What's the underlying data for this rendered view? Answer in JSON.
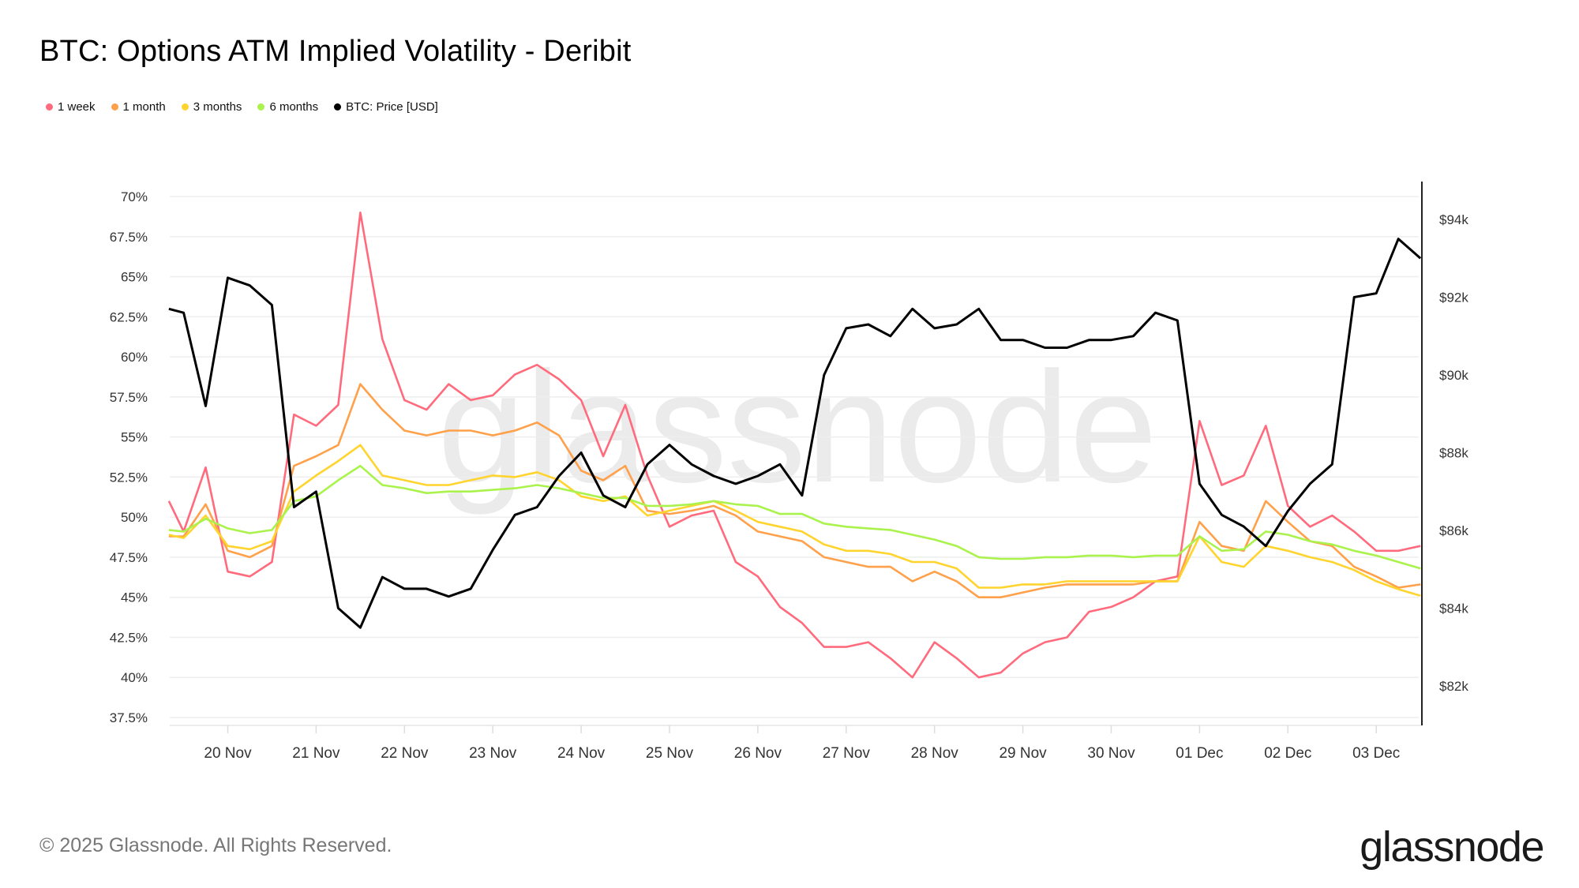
{
  "title": "BTC: Options ATM Implied Volatility - Deribit",
  "footer": {
    "copyright": "© 2025 Glassnode. All Rights Reserved.",
    "logo": "glassnode",
    "watermark": "glassnode"
  },
  "chart_data": {
    "type": "line",
    "title": "BTC: Options ATM Implied Volatility - Deribit",
    "legend_position": "top-left",
    "grid": true,
    "x_ticks": [
      "20 Nov",
      "21 Nov",
      "22 Nov",
      "23 Nov",
      "24 Nov",
      "25 Nov",
      "26 Nov",
      "27 Nov",
      "28 Nov",
      "29 Nov",
      "30 Nov",
      "01 Dec",
      "02 Dec",
      "03 Dec"
    ],
    "y_left": {
      "ticks": [
        "37.5%",
        "40%",
        "42.5%",
        "45%",
        "47.5%",
        "50%",
        "52.5%",
        "55%",
        "57.5%",
        "60%",
        "62.5%",
        "65%",
        "67.5%",
        "70%"
      ],
      "range": [
        37.5,
        70
      ],
      "unit": "%"
    },
    "y_right": {
      "ticks": [
        "$82k",
        "$84k",
        "$86k",
        "$88k",
        "$90k",
        "$92k",
        "$94k"
      ],
      "range": [
        80.9,
        95.0
      ],
      "unit": "USD thousands"
    },
    "x": [
      "19 Nov 08:00",
      "19 Nov 12:00",
      "19 Nov 18:00",
      "20 Nov 00:00",
      "20 Nov 06:00",
      "20 Nov 12:00",
      "20 Nov 18:00",
      "21 Nov 00:00",
      "21 Nov 06:00",
      "21 Nov 12:00",
      "21 Nov 18:00",
      "22 Nov 00:00",
      "22 Nov 06:00",
      "22 Nov 12:00",
      "22 Nov 18:00",
      "23 Nov 00:00",
      "23 Nov 06:00",
      "23 Nov 12:00",
      "23 Nov 18:00",
      "24 Nov 00:00",
      "24 Nov 06:00",
      "24 Nov 12:00",
      "24 Nov 18:00",
      "25 Nov 00:00",
      "25 Nov 06:00",
      "25 Nov 12:00",
      "25 Nov 18:00",
      "26 Nov 00:00",
      "26 Nov 06:00",
      "26 Nov 12:00",
      "26 Nov 18:00",
      "27 Nov 00:00",
      "27 Nov 06:00",
      "27 Nov 12:00",
      "27 Nov 18:00",
      "28 Nov 00:00",
      "28 Nov 06:00",
      "28 Nov 12:00",
      "28 Nov 18:00",
      "29 Nov 00:00",
      "29 Nov 06:00",
      "29 Nov 12:00",
      "29 Nov 18:00",
      "30 Nov 00:00",
      "30 Nov 06:00",
      "30 Nov 12:00",
      "30 Nov 18:00",
      "01 Dec 00:00",
      "01 Dec 06:00",
      "01 Dec 12:00",
      "01 Dec 18:00",
      "02 Dec 00:00",
      "02 Dec 06:00",
      "02 Dec 12:00",
      "02 Dec 18:00",
      "03 Dec 00:00",
      "03 Dec 06:00",
      "03 Dec 12:00"
    ],
    "series": [
      {
        "name": "1 week",
        "axis": "left",
        "color": "#ff6b7d",
        "values": [
          51.0,
          49.1,
          53.1,
          46.6,
          46.3,
          47.2,
          56.4,
          55.7,
          57.0,
          69.0,
          61.1,
          57.3,
          56.7,
          58.3,
          57.3,
          57.6,
          58.9,
          59.5,
          58.6,
          57.3,
          53.8,
          57.0,
          52.6,
          49.4,
          50.1,
          50.4,
          47.2,
          46.3,
          44.4,
          43.4,
          41.9,
          41.9,
          42.2,
          41.2,
          40.0,
          42.2,
          41.2,
          40.0,
          40.3,
          41.5,
          42.2,
          42.5,
          44.1,
          44.4,
          45.0,
          46.0,
          46.3,
          56.0,
          52.0,
          52.6,
          55.7,
          50.7,
          49.4,
          50.1,
          49.1,
          47.9,
          47.9,
          48.2
        ]
      },
      {
        "name": "1 month",
        "axis": "left",
        "color": "#ffa04a",
        "values": [
          48.8,
          48.8,
          50.8,
          47.9,
          47.5,
          48.2,
          53.2,
          53.8,
          54.5,
          58.3,
          56.7,
          55.4,
          55.1,
          55.4,
          55.4,
          55.1,
          55.4,
          55.9,
          55.1,
          52.9,
          52.3,
          53.2,
          50.4,
          50.2,
          50.4,
          50.7,
          50.1,
          49.1,
          48.8,
          48.5,
          47.5,
          47.2,
          46.9,
          46.9,
          46.0,
          46.6,
          46.0,
          45.0,
          45.0,
          45.3,
          45.6,
          45.8,
          45.8,
          45.8,
          45.8,
          46.0,
          46.0,
          49.7,
          48.2,
          47.9,
          51.0,
          49.7,
          48.5,
          48.2,
          46.9,
          46.3,
          45.6,
          45.8
        ]
      },
      {
        "name": "3 months",
        "axis": "left",
        "color": "#ffd42e",
        "values": [
          48.9,
          48.7,
          50.1,
          48.2,
          48.0,
          48.5,
          51.6,
          52.6,
          53.5,
          54.5,
          52.6,
          52.3,
          52.0,
          52.0,
          52.3,
          52.6,
          52.5,
          52.8,
          52.3,
          51.3,
          51.0,
          51.3,
          50.1,
          50.4,
          50.7,
          51.0,
          50.4,
          49.7,
          49.4,
          49.1,
          48.3,
          47.9,
          47.9,
          47.7,
          47.2,
          47.2,
          46.8,
          45.6,
          45.6,
          45.8,
          45.8,
          46.0,
          46.0,
          46.0,
          46.0,
          46.0,
          46.0,
          48.8,
          47.2,
          46.9,
          48.2,
          47.9,
          47.5,
          47.2,
          46.7,
          46.0,
          45.5,
          45.1
        ]
      },
      {
        "name": "6 months",
        "axis": "left",
        "color": "#aaf24c",
        "values": [
          49.2,
          49.1,
          49.9,
          49.3,
          49.0,
          49.2,
          51.0,
          51.3,
          52.3,
          53.2,
          52.0,
          51.8,
          51.5,
          51.6,
          51.6,
          51.7,
          51.8,
          52.0,
          51.8,
          51.5,
          51.2,
          51.2,
          50.7,
          50.7,
          50.8,
          51.0,
          50.8,
          50.7,
          50.2,
          50.2,
          49.6,
          49.4,
          49.3,
          49.2,
          48.9,
          48.6,
          48.2,
          47.5,
          47.4,
          47.4,
          47.5,
          47.5,
          47.6,
          47.6,
          47.5,
          47.6,
          47.6,
          48.8,
          47.9,
          48.0,
          49.1,
          48.9,
          48.5,
          48.3,
          47.9,
          47.6,
          47.2,
          46.8
        ]
      },
      {
        "name": "BTC: Price [USD]",
        "axis": "right",
        "color": "#000000",
        "values": [
          91.7,
          91.6,
          89.2,
          92.5,
          92.3,
          91.8,
          86.6,
          87.0,
          84.0,
          83.5,
          84.8,
          84.5,
          84.5,
          84.3,
          84.5,
          85.5,
          86.4,
          86.6,
          87.4,
          88.0,
          86.9,
          86.6,
          87.7,
          88.2,
          87.7,
          87.4,
          87.2,
          87.4,
          87.7,
          86.9,
          90.0,
          91.2,
          91.3,
          91.0,
          91.7,
          91.2,
          91.3,
          91.7,
          90.9,
          90.9,
          90.7,
          90.7,
          90.9,
          90.9,
          91.0,
          91.6,
          91.4,
          87.2,
          86.4,
          86.1,
          85.6,
          86.5,
          87.2,
          87.7,
          92.0,
          92.1,
          93.5,
          93.0
        ]
      }
    ]
  }
}
